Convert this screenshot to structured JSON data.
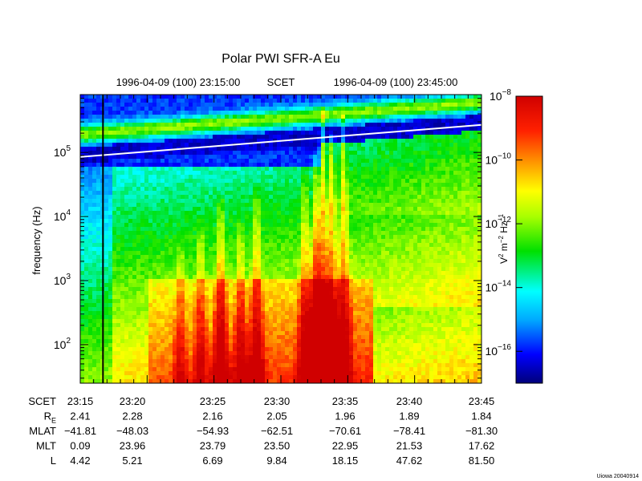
{
  "chart_data": {
    "type": "heatmap",
    "title": "Polar PWI SFR-A Eu",
    "header": {
      "start": "1996-04-09 (100) 23:15:00",
      "frame": "SCET",
      "end": "1996-04-09 (100) 23:45:00"
    },
    "ylabel": "frequency (Hz)",
    "y_scale": "log",
    "ylim": [
      25,
      800000
    ],
    "y_ticks": [
      {
        "value": 100,
        "base": "10",
        "exp": "2"
      },
      {
        "value": 1000,
        "base": "10",
        "exp": "3"
      },
      {
        "value": 10000,
        "base": "10",
        "exp": "4"
      },
      {
        "value": 100000,
        "base": "10",
        "exp": "5"
      }
    ],
    "xlim_minutes": [
      0,
      30
    ],
    "colorbar": {
      "label_base": "V",
      "label_parts": [
        {
          "t": "V",
          "s": ""
        },
        {
          "t": "2",
          "s": "sup"
        },
        {
          "t": " m",
          "s": ""
        },
        {
          "t": "−2",
          "s": "sup"
        },
        {
          "t": " Hz",
          "s": ""
        },
        {
          "t": "−1",
          "s": "sup"
        }
      ],
      "log_range": [
        -17,
        -8
      ],
      "ticks": [
        {
          "exp": "−8",
          "value": -8
        },
        {
          "exp": "−10",
          "value": -10
        },
        {
          "exp": "−12",
          "value": -12
        },
        {
          "exp": "−14",
          "value": -14
        },
        {
          "exp": "−16",
          "value": -16
        }
      ]
    },
    "white_curve": {
      "description_free": true,
      "points": [
        [
          0,
          85000
        ],
        [
          30,
          270000
        ]
      ]
    },
    "bursts": [
      {
        "t": 10.5,
        "f_top": 20000,
        "amp": 1.0
      },
      {
        "t": 12.0,
        "f_top": 8000,
        "amp": 0.8
      },
      {
        "t": 13.2,
        "f_top": 30000,
        "amp": 0.9
      },
      {
        "t": 16.8,
        "f_top": 60000,
        "amp": 0.9
      },
      {
        "t": 17.6,
        "f_top": 90000,
        "amp": 1.0
      },
      {
        "t": 18.1,
        "f_top": 500000,
        "amp": 1.0
      },
      {
        "t": 18.8,
        "f_top": 200000,
        "amp": 1.0
      },
      {
        "t": 19.7,
        "f_top": 400000,
        "amp": 0.9
      },
      {
        "t": 7.5,
        "f_top": 5000,
        "amp": 0.6
      },
      {
        "t": 9.0,
        "f_top": 10000,
        "amp": 0.7
      }
    ]
  },
  "ephemeris": {
    "rows": [
      {
        "label": "SCET",
        "values": [
          "23:15",
          "23:20",
          "23:25",
          "23:30",
          "23:35",
          "23:40",
          "23:45"
        ]
      },
      {
        "label": "R",
        "sub": "E",
        "values": [
          "2.41",
          "2.28",
          "2.16",
          "2.05",
          "1.96",
          "1.89",
          "1.84"
        ]
      },
      {
        "label": "MLAT",
        "values": [
          "−41.81",
          "−48.03",
          "−54.93",
          "−62.51",
          "−70.61",
          "−78.41",
          "−81.30"
        ]
      },
      {
        "label": "MLT",
        "values": [
          "0.09",
          "23.96",
          "23.79",
          "23.50",
          "22.95",
          "21.53",
          "17.62"
        ]
      },
      {
        "label": "L",
        "values": [
          "4.42",
          "5.21",
          "6.69",
          "9.84",
          "18.15",
          "47.62",
          "81.50"
        ]
      }
    ]
  },
  "footer": "Uiowa 20040914"
}
